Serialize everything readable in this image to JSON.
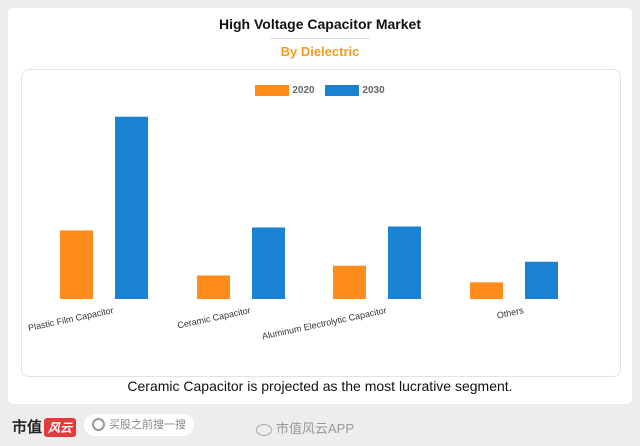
{
  "header": {
    "title": "High Voltage Capacitor Market",
    "subtitle": "By Dielectric"
  },
  "chart_data": {
    "type": "bar",
    "title": "High Voltage Capacitor Market",
    "subtitle": "By Dielectric",
    "categories": [
      "Plastic Film Capacitor",
      "Ceramic Capacitor",
      "Aluminum Electrolytic Capacitor",
      "Others"
    ],
    "series": [
      {
        "name": "2020",
        "color": "#ff8c1a",
        "values": [
          70,
          24,
          34,
          17
        ]
      },
      {
        "name": "2030",
        "color": "#1a82d1",
        "values": [
          186,
          73,
          74,
          38
        ]
      }
    ],
    "ylim": [
      0,
      200
    ],
    "grid": false,
    "legend": "top-center",
    "y_axis_labels_shown": false
  },
  "caption": "Ceramic Capacitor is projected as the most lucrative segment.",
  "footer": {
    "brand": "市值",
    "brand_badge": "风云",
    "search_placeholder": "买股之前搜一搜",
    "wechat_label": "市值风云APP",
    "icons": [
      "search-icon",
      "wechat-icon"
    ]
  }
}
